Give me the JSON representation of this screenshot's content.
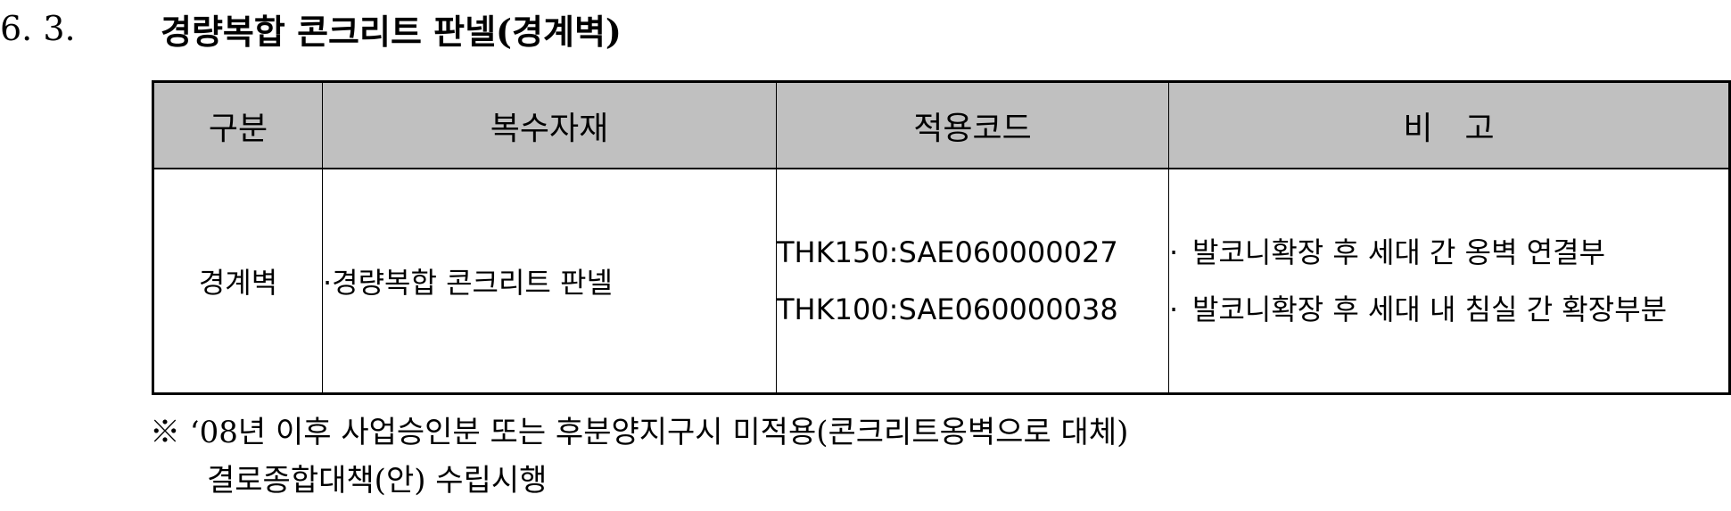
{
  "section": {
    "number": "6. 3.",
    "title": "경량복합 콘크리트 판넬(경계벽)"
  },
  "table": {
    "headers": [
      "구분",
      "복수자재",
      "적용코드",
      "비　고"
    ],
    "rows": [
      {
        "category": "경계벽",
        "material": "·경량복합 콘크리트 판넬",
        "codes": [
          "THK150:SAE060000027",
          "THK100:SAE060000038"
        ],
        "remarks": [
          "발코니확장 후 세대 간 옹벽 연결부",
          "발코니확장 후 세대 내 침실 간 확장부분"
        ],
        "remark_bullet": "·"
      }
    ]
  },
  "footnote": {
    "line1": "※ ‘08년 이후 사업승인분 또는 후분양지구시 미적용(콘크리트옹벽으로 대체)",
    "line2": "결로종합대책(안) 수립시행"
  }
}
